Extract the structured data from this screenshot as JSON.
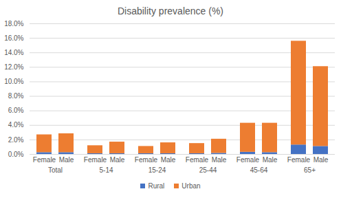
{
  "chart_data": {
    "type": "bar",
    "title": "Disability prevalence (%)",
    "stacked": true,
    "grid": true,
    "legend": "bottom",
    "categories": [
      "Female",
      "Male",
      "Female",
      "Male",
      "Female",
      "Male",
      "Female",
      "Male",
      "Female",
      "Male",
      "Female",
      "Male"
    ],
    "groups": [
      "Total",
      "5-14",
      "15-24",
      "25-44",
      "45-64",
      "65+"
    ],
    "series": [
      {
        "name": "Rural",
        "color": "#4472c4",
        "values": [
          0.25,
          0.25,
          0.1,
          0.1,
          0.1,
          0.1,
          0.1,
          0.15,
          0.3,
          0.25,
          1.3,
          1.1
        ]
      },
      {
        "name": "Urban",
        "color": "#ed7d31",
        "values": [
          2.45,
          2.6,
          1.1,
          1.6,
          1.0,
          1.5,
          1.4,
          1.95,
          4.0,
          4.05,
          14.3,
          11.0
        ]
      }
    ],
    "ylim": [
      0,
      18
    ],
    "yticks": [
      {
        "value": 0,
        "label": "0.0%"
      },
      {
        "value": 2,
        "label": "2.0%"
      },
      {
        "value": 4,
        "label": "4.0%"
      },
      {
        "value": 6,
        "label": "6.0%"
      },
      {
        "value": 8,
        "label": "8.0%"
      },
      {
        "value": 10,
        "label": "10.0%"
      },
      {
        "value": 12,
        "label": "12.0%"
      },
      {
        "value": 14,
        "label": "14.0%"
      },
      {
        "value": 16,
        "label": "16.0%"
      },
      {
        "value": 18,
        "label": "18.0%"
      }
    ]
  }
}
